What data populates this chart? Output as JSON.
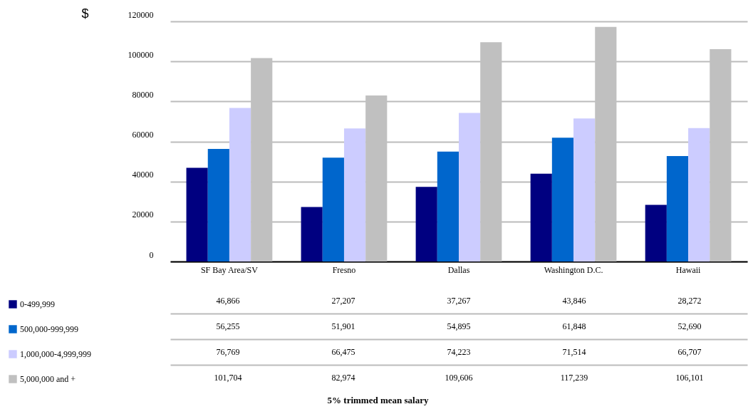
{
  "chart_data": {
    "type": "bar",
    "title": "5% trimmed mean salary",
    "ylabel": "$",
    "categories": [
      "SF Bay Area/SV",
      "Fresno",
      "Dallas",
      "Washington D.C.",
      "Hawaii"
    ],
    "series": [
      {
        "name": "0-499,999",
        "color": "#000080",
        "values": [
          46866,
          27207,
          37267,
          43846,
          28272
        ],
        "value_labels": [
          "46,866",
          "27,207",
          "37,267",
          "43,846",
          "28,272"
        ]
      },
      {
        "name": "500,000-999,999",
        "color": "#0066cc",
        "values": [
          56255,
          51901,
          54895,
          61848,
          52690
        ],
        "value_labels": [
          "56,255",
          "51,901",
          "54,895",
          "61,848",
          "52,690"
        ]
      },
      {
        "name": "1,000,000-4,999,999",
        "color": "#ccccff",
        "values": [
          76769,
          66475,
          74223,
          71514,
          66707
        ],
        "value_labels": [
          "76,769",
          "66,475",
          "74,223",
          "71,514",
          "66,707"
        ]
      },
      {
        "name": "5,000,000 and +",
        "color": "#c0c0c0",
        "values": [
          101704,
          82974,
          109606,
          117239,
          106101
        ],
        "value_labels": [
          "101,704",
          "82,974",
          "109,606",
          "117,239",
          "106,101"
        ]
      }
    ],
    "ylim": [
      0,
      120000
    ],
    "yticks": [
      0,
      20000,
      40000,
      60000,
      80000,
      100000,
      120000
    ],
    "grid": "y",
    "legend": "left"
  }
}
